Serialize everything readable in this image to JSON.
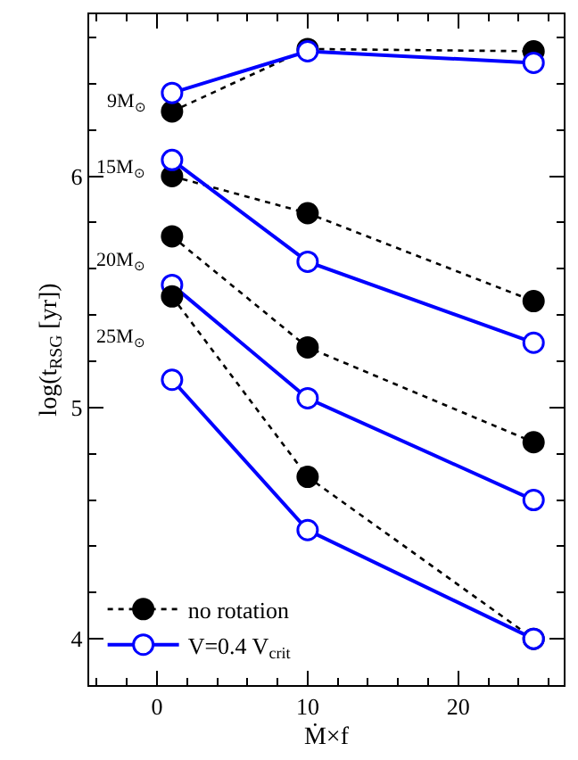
{
  "chart_data": {
    "type": "line",
    "xlabel": "Ṁ×f",
    "ylabel": "log(t$_{RSG}$ [yr])",
    "x": [
      1,
      10,
      25
    ],
    "xlim": [
      -4.5,
      27
    ],
    "ylim": [
      3.8,
      6.7
    ],
    "xticks": [
      {
        "value": -4,
        "label": null
      },
      {
        "value": -2,
        "label": null
      },
      0,
      {
        "value": 2,
        "label": null
      },
      {
        "value": 4,
        "label": null
      },
      {
        "value": 6,
        "label": null
      },
      {
        "value": 8,
        "label": null
      },
      10,
      {
        "value": 12,
        "label": null
      },
      {
        "value": 14,
        "label": null
      },
      {
        "value": 16,
        "label": null
      },
      {
        "value": 18,
        "label": null
      },
      20,
      {
        "value": 22,
        "label": null
      },
      {
        "value": 24,
        "label": null
      },
      {
        "value": 26,
        "label": null
      }
    ],
    "yticks": [
      {
        "value": 3.8,
        "label": null
      },
      4,
      {
        "value": 4.2,
        "label": null
      },
      {
        "value": 4.4,
        "label": null
      },
      {
        "value": 4.6,
        "label": null
      },
      {
        "value": 4.8,
        "label": null
      },
      5,
      {
        "value": 5.2,
        "label": null
      },
      {
        "value": 5.4,
        "label": null
      },
      {
        "value": 5.6,
        "label": null
      },
      {
        "value": 5.8,
        "label": null
      },
      6,
      {
        "value": 6.2,
        "label": null
      },
      {
        "value": 6.4,
        "label": null
      },
      {
        "value": 6.6,
        "label": null
      }
    ],
    "marker": "circle",
    "legend": "bottom left",
    "series": [
      {
        "name": "no rotation",
        "color": "#000000",
        "line_style": "dotted",
        "values": [
          6.28,
          6.55,
          6.54
        ]
      },
      {
        "color": "#0000ff",
        "line_style": "solid",
        "values": [
          6.36,
          6.54,
          6.49
        ]
      },
      {
        "color": "#000000",
        "line_style": "dotted",
        "values": [
          6.0,
          5.84,
          5.46
        ]
      },
      {
        "color": "#0000ff",
        "line_style": "solid",
        "values": [
          6.07,
          5.63,
          5.28
        ]
      },
      {
        "color": "#000000",
        "line_style": "dotted",
        "values": [
          5.74,
          5.26,
          4.85
        ]
      },
      {
        "color": "#0000ff",
        "line_style": "solid",
        "values": [
          5.53,
          5.04,
          4.6
        ]
      },
      {
        "color": "#000000",
        "line_style": "dotted",
        "values": [
          5.48,
          4.7,
          4.0
        ]
      },
      {
        "name": "V=0.4 V$_{crit}$",
        "color": "#0000ff",
        "line_style": "solid",
        "values": [
          5.12,
          4.47,
          4.0
        ]
      }
    ],
    "annotations": [
      "9M$_{⊙}$",
      "15M$_{⊙}$",
      "20M$_{⊙}$",
      "25M$_{⊙}$"
    ]
  }
}
